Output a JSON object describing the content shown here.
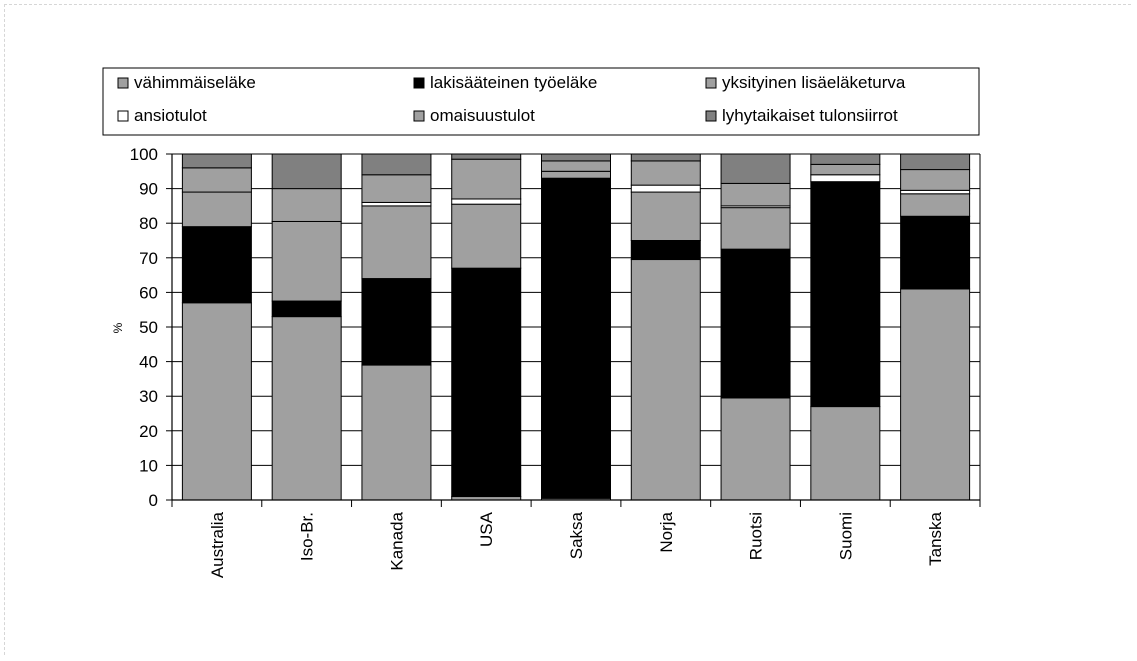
{
  "chart_data": {
    "type": "bar",
    "stacked": true,
    "title": "",
    "xlabel": "",
    "ylabel": "%",
    "ylim": [
      0,
      100
    ],
    "yticks": [
      0,
      10,
      20,
      30,
      40,
      50,
      60,
      70,
      80,
      90,
      100
    ],
    "grid": true,
    "legend_position": "top",
    "categories": [
      "Australia",
      "Iso-Br.",
      "Kanada",
      "USA",
      "Saksa",
      "Norja",
      "Ruotsi",
      "Suomi",
      "Tanska"
    ],
    "series": [
      {
        "name": "vähimmäiseläke",
        "color": "#a0a0a0",
        "values": [
          57,
          53,
          39,
          1,
          0.5,
          69.5,
          29.5,
          27,
          61
        ]
      },
      {
        "name": "lakisääteinen työeläke",
        "color": "#000000",
        "values": [
          22,
          4.5,
          25,
          66,
          92.5,
          5.5,
          43,
          65,
          21
        ]
      },
      {
        "name": "yksityinen lisäeläketurva",
        "color": "#a0a0a0",
        "values": [
          10,
          23,
          21,
          18.5,
          2,
          14,
          12,
          0,
          6.5
        ]
      },
      {
        "name": "ansiotulot",
        "color": "#ffffff",
        "values": [
          0,
          0,
          1,
          1.5,
          0,
          2,
          0.5,
          2,
          1
        ]
      },
      {
        "name": "omaisuustulot",
        "color": "#a0a0a0",
        "values": [
          7,
          9.5,
          8,
          11.5,
          3,
          7,
          6.5,
          3,
          6
        ]
      },
      {
        "name": "lyhytaikaiset tulonsiirrot",
        "color": "#808080",
        "values": [
          4,
          10,
          6,
          1.5,
          2,
          2,
          8.5,
          3,
          4.5
        ]
      }
    ]
  }
}
